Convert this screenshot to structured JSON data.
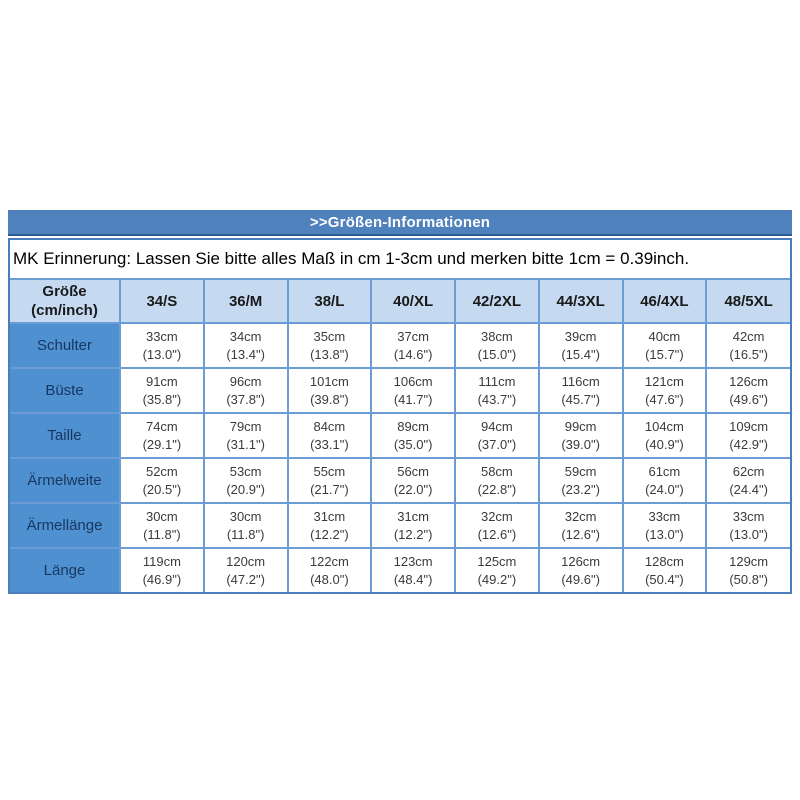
{
  "title_bar": {
    "label": ">>Größen-Informationen"
  },
  "note": {
    "text": "MK Erinnerung: Lassen Sie bitte alles Maß in cm 1-3cm und merken bitte 1cm = 0.39inch."
  },
  "table": {
    "corner": {
      "line1": "Größe",
      "line2": "(cm/inch)"
    },
    "columns": [
      "34/S",
      "36/M",
      "38/L",
      "40/XL",
      "42/2XL",
      "44/3XL",
      "46/4XL",
      "48/5XL"
    ],
    "rows": [
      {
        "label": "Schulter",
        "cells": [
          {
            "cm": "33cm",
            "inch": "(13.0\")"
          },
          {
            "cm": "34cm",
            "inch": "(13.4\")"
          },
          {
            "cm": "35cm",
            "inch": "(13.8\")"
          },
          {
            "cm": "37cm",
            "inch": "(14.6\")"
          },
          {
            "cm": "38cm",
            "inch": "(15.0\")"
          },
          {
            "cm": "39cm",
            "inch": "(15.4\")"
          },
          {
            "cm": "40cm",
            "inch": "(15.7\")"
          },
          {
            "cm": "42cm",
            "inch": "(16.5\")"
          }
        ]
      },
      {
        "label": "Büste",
        "cells": [
          {
            "cm": "91cm",
            "inch": "(35.8\")"
          },
          {
            "cm": "96cm",
            "inch": "(37.8\")"
          },
          {
            "cm": "101cm",
            "inch": "(39.8\")"
          },
          {
            "cm": "106cm",
            "inch": "(41.7\")"
          },
          {
            "cm": "111cm",
            "inch": "(43.7\")"
          },
          {
            "cm": "116cm",
            "inch": "(45.7\")"
          },
          {
            "cm": "121cm",
            "inch": "(47.6\")"
          },
          {
            "cm": "126cm",
            "inch": "(49.6\")"
          }
        ]
      },
      {
        "label": "Taille",
        "cells": [
          {
            "cm": "74cm",
            "inch": "(29.1\")"
          },
          {
            "cm": "79cm",
            "inch": "(31.1\")"
          },
          {
            "cm": "84cm",
            "inch": "(33.1\")"
          },
          {
            "cm": "89cm",
            "inch": "(35.0\")"
          },
          {
            "cm": "94cm",
            "inch": "(37.0\")"
          },
          {
            "cm": "99cm",
            "inch": "(39.0\")"
          },
          {
            "cm": "104cm",
            "inch": "(40.9\")"
          },
          {
            "cm": "109cm",
            "inch": "(42.9\")"
          }
        ]
      },
      {
        "label": "Ärmelweite",
        "cells": [
          {
            "cm": "52cm",
            "inch": "(20.5\")"
          },
          {
            "cm": "53cm",
            "inch": "(20.9\")"
          },
          {
            "cm": "55cm",
            "inch": "(21.7\")"
          },
          {
            "cm": "56cm",
            "inch": "(22.0\")"
          },
          {
            "cm": "58cm",
            "inch": "(22.8\")"
          },
          {
            "cm": "59cm",
            "inch": "(23.2\")"
          },
          {
            "cm": "61cm",
            "inch": "(24.0\")"
          },
          {
            "cm": "62cm",
            "inch": "(24.4\")"
          }
        ]
      },
      {
        "label": "Ärmellänge",
        "cells": [
          {
            "cm": "30cm",
            "inch": "(11.8\")"
          },
          {
            "cm": "30cm",
            "inch": "(11.8\")"
          },
          {
            "cm": "31cm",
            "inch": "(12.2\")"
          },
          {
            "cm": "31cm",
            "inch": "(12.2\")"
          },
          {
            "cm": "32cm",
            "inch": "(12.6\")"
          },
          {
            "cm": "32cm",
            "inch": "(12.6\")"
          },
          {
            "cm": "33cm",
            "inch": "(13.0\")"
          },
          {
            "cm": "33cm",
            "inch": "(13.0\")"
          }
        ]
      },
      {
        "label": "Länge",
        "cells": [
          {
            "cm": "119cm",
            "inch": "(46.9\")"
          },
          {
            "cm": "120cm",
            "inch": "(47.2\")"
          },
          {
            "cm": "122cm",
            "inch": "(48.0\")"
          },
          {
            "cm": "123cm",
            "inch": "(48.4\")"
          },
          {
            "cm": "125cm",
            "inch": "(49.2\")"
          },
          {
            "cm": "126cm",
            "inch": "(49.6\")"
          },
          {
            "cm": "128cm",
            "inch": "(50.4\")"
          },
          {
            "cm": "129cm",
            "inch": "(50.8\")"
          }
        ]
      }
    ]
  },
  "colors": {
    "title_bar_bg": "#4f81bd",
    "title_bar_edge": "#2c5a8c",
    "title_text": "#ffffff",
    "outer_border": "#4a7ebb",
    "grid_line": "#6b9cd6",
    "header_bg": "#c5d9f1",
    "header_text": "#1a1a1a",
    "label_bg": "#4f90d1",
    "label_text": "#17375e",
    "cell_bg": "#ffffff",
    "cell_text": "#3b3b3b",
    "note_text": "#000000"
  }
}
